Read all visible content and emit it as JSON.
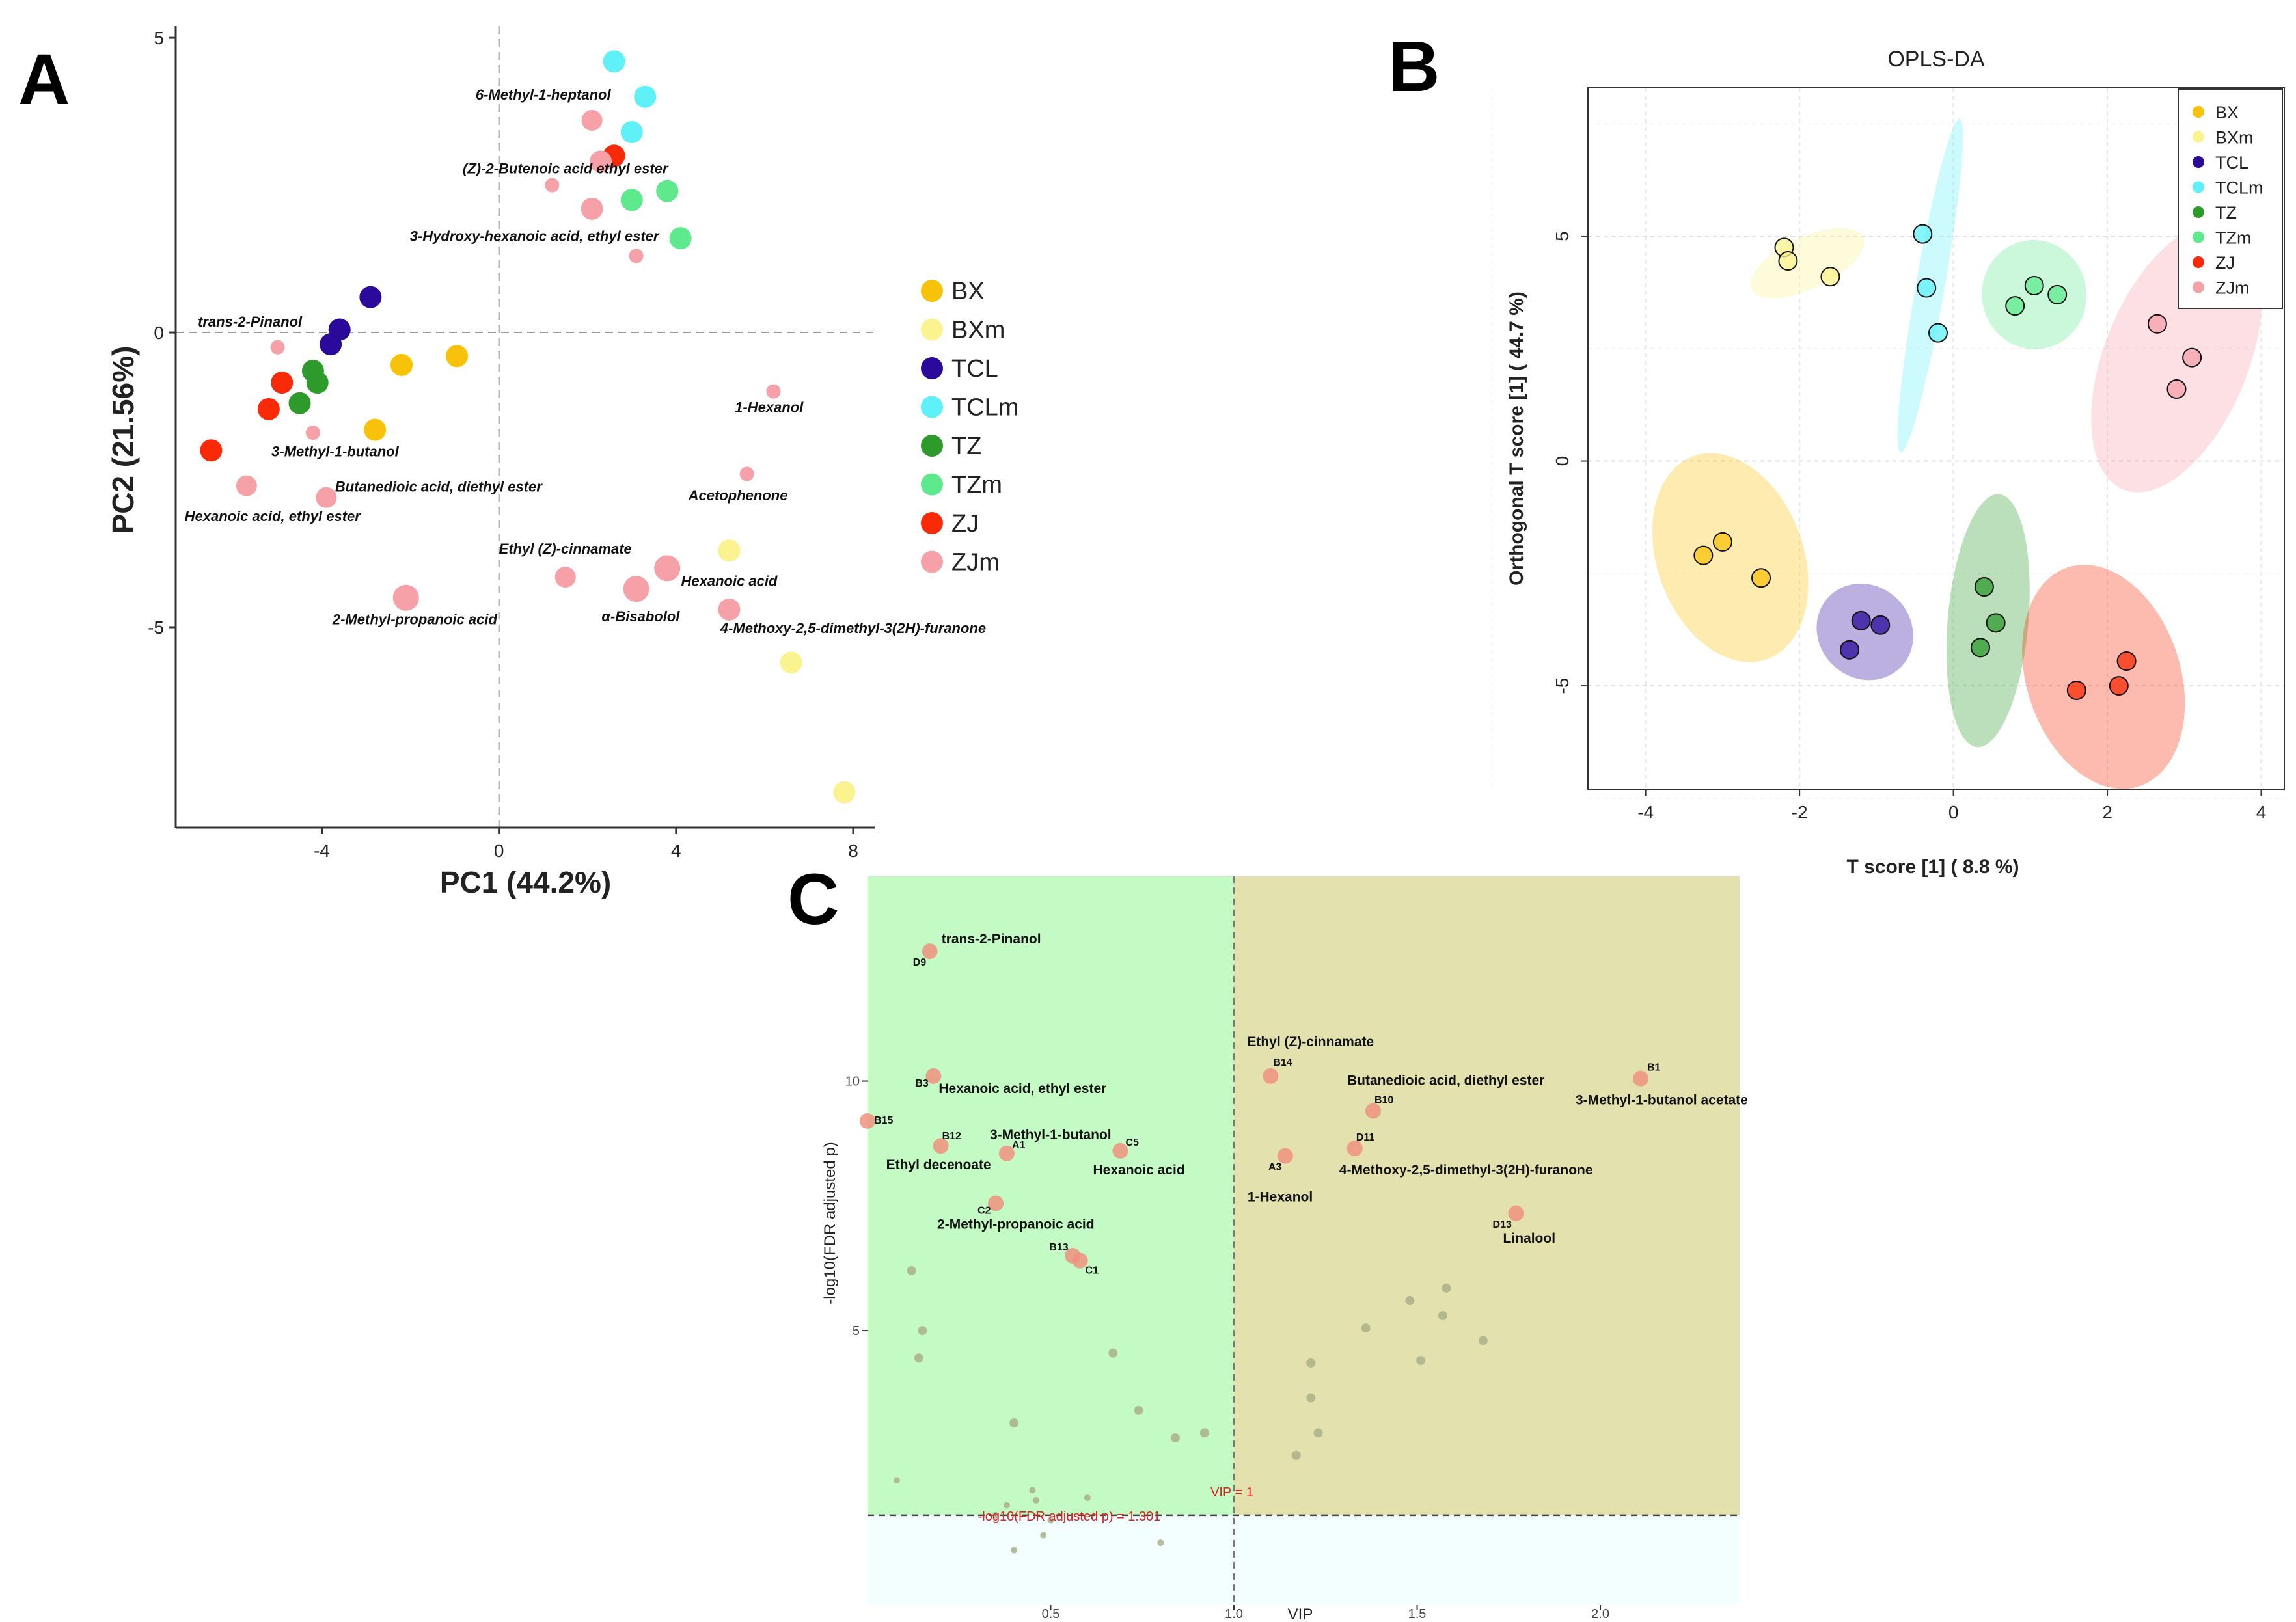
{
  "panel_letters": {
    "a": "A",
    "b": "B",
    "c": "C"
  },
  "colors": {
    "BX": "#f9c20a",
    "BXm": "#fbf38f",
    "TCL": "#2b0a9b",
    "TCLm": "#5ff0f8",
    "TZ": "#2e9a2c",
    "TZm": "#5de98c",
    "ZJ": "#f82a07",
    "ZJm": "#f6a0a8",
    "c_green_region": "#c4fbc4",
    "c_olive_region": "#e3e1ad",
    "c_bottom_region": "#f2feff",
    "c_sig_point": "#f09080",
    "c_point": "#aab088"
  },
  "chart_data": [
    {
      "panel": "A",
      "type": "scatter",
      "title": "",
      "xlabel": "PC1 (44.2%)",
      "ylabel": "PC2 (21.56%)",
      "xlim": [
        -7.3,
        8.5
      ],
      "ylim": [
        -8.4,
        5.2
      ],
      "xticks": [
        -4,
        0,
        4,
        8
      ],
      "yticks": [
        -5,
        0,
        5
      ],
      "legend": [
        "BX",
        "BXm",
        "TCL",
        "TCLm",
        "TZ",
        "TZm",
        "ZJ",
        "ZJm"
      ],
      "legend_position": "right",
      "points": [
        {
          "g": "TCLm",
          "x": 2.6,
          "y": 4.6,
          "s": "large"
        },
        {
          "g": "TCLm",
          "x": 3.3,
          "y": 4.0,
          "s": "large"
        },
        {
          "g": "TCLm",
          "x": 3.0,
          "y": 3.4,
          "s": "large"
        },
        {
          "g": "ZJm",
          "x": 2.1,
          "y": 3.6,
          "s": "medium"
        },
        {
          "g": "ZJ",
          "x": 2.6,
          "y": 3.0,
          "s": "large"
        },
        {
          "g": "ZJm",
          "x": 2.3,
          "y": 2.9,
          "s": "large"
        },
        {
          "g": "ZJm",
          "x": 1.2,
          "y": 2.5,
          "s": "small"
        },
        {
          "g": "TZm",
          "x": 3.8,
          "y": 2.4,
          "s": "large"
        },
        {
          "g": "TZm",
          "x": 3.0,
          "y": 2.25,
          "s": "large"
        },
        {
          "g": "ZJm",
          "x": 2.1,
          "y": 2.1,
          "s": "large"
        },
        {
          "g": "TZm",
          "x": 4.1,
          "y": 1.6,
          "s": "large"
        },
        {
          "g": "ZJm",
          "x": 3.1,
          "y": 1.3,
          "s": "small"
        },
        {
          "g": "TCL",
          "x": -2.9,
          "y": 0.6,
          "s": "large"
        },
        {
          "g": "TCL",
          "x": -3.6,
          "y": 0.05,
          "s": "large"
        },
        {
          "g": "TCL",
          "x": -3.8,
          "y": -0.2,
          "s": "large"
        },
        {
          "g": "ZJm",
          "x": -5.0,
          "y": -0.25,
          "s": "small"
        },
        {
          "g": "BX",
          "x": -2.2,
          "y": -0.55,
          "s": "large"
        },
        {
          "g": "BX",
          "x": -0.95,
          "y": -0.4,
          "s": "large"
        },
        {
          "g": "TZ",
          "x": -4.2,
          "y": -0.65,
          "s": "large"
        },
        {
          "g": "TZ",
          "x": -4.1,
          "y": -0.85,
          "s": "large"
        },
        {
          "g": "ZJ",
          "x": -4.9,
          "y": -0.85,
          "s": "large"
        },
        {
          "g": "TZ",
          "x": -4.5,
          "y": -1.2,
          "s": "large"
        },
        {
          "g": "ZJ",
          "x": -5.2,
          "y": -1.3,
          "s": "large"
        },
        {
          "g": "ZJm",
          "x": 6.2,
          "y": -1.0,
          "s": "small"
        },
        {
          "g": "BX",
          "x": -2.8,
          "y": -1.65,
          "s": "large"
        },
        {
          "g": "ZJm",
          "x": -4.2,
          "y": -1.7,
          "s": "small"
        },
        {
          "g": "ZJ",
          "x": -6.5,
          "y": -2.0,
          "s": "large"
        },
        {
          "g": "ZJm",
          "x": -5.7,
          "y": -2.6,
          "s": "medium"
        },
        {
          "g": "ZJm",
          "x": -3.9,
          "y": -2.8,
          "s": "medium"
        },
        {
          "g": "ZJm",
          "x": 5.6,
          "y": -2.4,
          "s": "small"
        },
        {
          "g": "BXm",
          "x": 5.2,
          "y": -3.7,
          "s": "large"
        },
        {
          "g": "ZJm",
          "x": 3.8,
          "y": -4.0,
          "s": "xlarge"
        },
        {
          "g": "ZJm",
          "x": 1.5,
          "y": -4.15,
          "s": "medium"
        },
        {
          "g": "ZJm",
          "x": 3.1,
          "y": -4.35,
          "s": "xlarge"
        },
        {
          "g": "ZJm",
          "x": -2.1,
          "y": -4.5,
          "s": "xlarge"
        },
        {
          "g": "ZJm",
          "x": 5.2,
          "y": -4.7,
          "s": "large"
        },
        {
          "g": "BXm",
          "x": 6.6,
          "y": -5.6,
          "s": "large"
        },
        {
          "g": "BXm",
          "x": 7.8,
          "y": -7.8,
          "s": "large"
        }
      ],
      "annotations": [
        {
          "text": "6-Methyl-1-heptanol",
          "x": 1.0,
          "y": 3.95,
          "anchor": "middle"
        },
        {
          "text": "(Z)-2-Butenoic acid ethyl ester",
          "x": 1.5,
          "y": 2.7,
          "anchor": "middle"
        },
        {
          "text": "3-Hydroxy-hexanoic acid, ethyl ester",
          "x": 0.8,
          "y": 1.55,
          "anchor": "middle"
        },
        {
          "text": "trans-2-Pinanol",
          "x": -6.8,
          "y": 0.1,
          "anchor": "start"
        },
        {
          "text": "1-Hexanol",
          "x": 6.1,
          "y": -1.35,
          "anchor": "middle"
        },
        {
          "text": "3-Methyl-1-butanol",
          "x": -3.7,
          "y": -2.1,
          "anchor": "middle"
        },
        {
          "text": "Butanedioic acid, diethyl ester",
          "x": -3.7,
          "y": -2.7,
          "anchor": "start"
        },
        {
          "text": "Hexanoic acid, ethyl ester",
          "x": -7.1,
          "y": -3.2,
          "anchor": "start"
        },
        {
          "text": "Acetophenone",
          "x": 5.4,
          "y": -2.85,
          "anchor": "middle"
        },
        {
          "text": "Ethyl (Z)-cinnamate",
          "x": 1.5,
          "y": -3.75,
          "anchor": "middle"
        },
        {
          "text": "Hexanoic acid",
          "x": 5.2,
          "y": -4.3,
          "anchor": "middle"
        },
        {
          "text": "α-Bisabolol",
          "x": 3.2,
          "y": -4.9,
          "anchor": "middle"
        },
        {
          "text": "4-Methoxy-2,5-dimethyl-3(2H)-furanone",
          "x": 8.0,
          "y": -5.1,
          "anchor": "middle"
        },
        {
          "text": "2-Methyl-propanoic acid",
          "x": -1.9,
          "y": -4.95,
          "anchor": "middle"
        }
      ]
    },
    {
      "panel": "B",
      "type": "scatter",
      "title": "OPLS-DA",
      "xlabel": "T score [1] ( 8.8 %)",
      "ylabel": "Orthogonal T score [1] ( 44.7 %)",
      "xlim": [
        -4.75,
        4.3
      ],
      "ylim": [
        -7.3,
        8.3
      ],
      "xticks": [
        -4,
        -2,
        0,
        2,
        4
      ],
      "yticks": [
        -5,
        0,
        5
      ],
      "legend": [
        "BX",
        "BXm",
        "TCL",
        "TCLm",
        "TZ",
        "TZm",
        "ZJ",
        "ZJm"
      ],
      "legend_position": "top-right",
      "grid": true,
      "points": [
        {
          "g": "BXm",
          "x": -2.2,
          "y": 4.75
        },
        {
          "g": "BXm",
          "x": -2.15,
          "y": 4.45
        },
        {
          "g": "BXm",
          "x": -1.6,
          "y": 4.1
        },
        {
          "g": "TCLm",
          "x": -0.4,
          "y": 5.05
        },
        {
          "g": "TCLm",
          "x": -0.35,
          "y": 3.85
        },
        {
          "g": "TCLm",
          "x": -0.2,
          "y": 2.85
        },
        {
          "g": "TZm",
          "x": 0.8,
          "y": 3.45
        },
        {
          "g": "TZm",
          "x": 1.05,
          "y": 3.9
        },
        {
          "g": "TZm",
          "x": 1.35,
          "y": 3.7
        },
        {
          "g": "ZJm",
          "x": 2.65,
          "y": 3.05
        },
        {
          "g": "ZJm",
          "x": 3.1,
          "y": 2.3
        },
        {
          "g": "ZJm",
          "x": 2.9,
          "y": 1.6
        },
        {
          "g": "BX",
          "x": -3.25,
          "y": -2.1
        },
        {
          "g": "BX",
          "x": -3.0,
          "y": -1.8
        },
        {
          "g": "BX",
          "x": -2.5,
          "y": -2.6
        },
        {
          "g": "TCL",
          "x": -1.2,
          "y": -3.55
        },
        {
          "g": "TCL",
          "x": -0.95,
          "y": -3.65
        },
        {
          "g": "TCL",
          "x": -1.35,
          "y": -4.2
        },
        {
          "g": "TZ",
          "x": 0.4,
          "y": -2.8
        },
        {
          "g": "TZ",
          "x": 0.55,
          "y": -3.6
        },
        {
          "g": "TZ",
          "x": 0.35,
          "y": -4.15
        },
        {
          "g": "ZJ",
          "x": 1.6,
          "y": -5.1
        },
        {
          "g": "ZJ",
          "x": 2.15,
          "y": -5.0
        },
        {
          "g": "ZJ",
          "x": 2.25,
          "y": -4.45
        }
      ],
      "ellipses": [
        {
          "g": "BXm",
          "cx": -1.9,
          "cy": 4.4,
          "rx": 0.8,
          "ry": 0.18,
          "angle": -25
        },
        {
          "g": "TCLm",
          "cx": -0.3,
          "cy": 3.9,
          "rx": 2.2,
          "ry": 0.1,
          "angle": -80
        },
        {
          "g": "TZm",
          "cx": 1.05,
          "cy": 3.7,
          "rx": 0.68,
          "ry": 0.38,
          "angle": -10
        },
        {
          "g": "ZJm",
          "cx": 2.9,
          "cy": 2.3,
          "rx": 1.85,
          "ry": 0.5,
          "angle": -68
        },
        {
          "g": "BX",
          "cx": -2.9,
          "cy": -2.15,
          "rx": 0.95,
          "ry": 0.75,
          "angle": -20
        },
        {
          "g": "TCL",
          "cx": -1.15,
          "cy": -3.8,
          "rx": 0.6,
          "ry": 0.35,
          "angle": -45
        },
        {
          "g": "TZ",
          "cx": 0.45,
          "cy": -3.55,
          "rx": 1.65,
          "ry": 0.28,
          "angle": -85
        },
        {
          "g": "ZJ",
          "cx": 1.95,
          "cy": -4.8,
          "rx": 1.0,
          "ry": 0.8,
          "angle": -18
        }
      ]
    },
    {
      "panel": "C",
      "type": "scatter",
      "xlabel": "VIP",
      "ylabel": "-log10(FDR adjusted p)",
      "xlim": [
        0,
        2.38
      ],
      "ylim": [
        -0.5,
        14.1
      ],
      "xticks": [
        0.5,
        1.0,
        1.5,
        2.0
      ],
      "xtick_labels": [
        "0.5",
        "1.0",
        "1.5",
        "2.0"
      ],
      "yticks": [
        5,
        10
      ],
      "vip_line_label": "VIP = 1",
      "p_line_label": "-log10(FDR adjusted p) = 1.301",
      "vip_threshold": 1.0,
      "p_threshold": 1.301,
      "sig_points": [
        {
          "x": 0.17,
          "y": 12.6,
          "id": "D9",
          "label": "trans-2-Pinanol"
        },
        {
          "x": 0.18,
          "y": 10.1,
          "id": "B3",
          "label": "Hexanoic acid, ethyl ester"
        },
        {
          "x": 0.0,
          "y": 9.2,
          "id": "B15",
          "label": ""
        },
        {
          "x": 0.2,
          "y": 8.7,
          "id": "B12",
          "label": "Ethyl decenoate"
        },
        {
          "x": 0.38,
          "y": 8.55,
          "id": "A1",
          "label": "3-Methyl-1-butanol"
        },
        {
          "x": 0.69,
          "y": 8.6,
          "id": "C5",
          "label": "Hexanoic acid"
        },
        {
          "x": 0.35,
          "y": 7.55,
          "id": "C2",
          "label": "2-Methyl-propanoic acid"
        },
        {
          "x": 0.56,
          "y": 6.5,
          "id": "B13",
          "label": ""
        },
        {
          "x": 0.58,
          "y": 6.4,
          "id": "C1",
          "label": ""
        },
        {
          "x": 1.1,
          "y": 10.1,
          "id": "B14",
          "label": "Ethyl (Z)-cinnamate"
        },
        {
          "x": 1.38,
          "y": 9.4,
          "id": "B10",
          "label": "Butanedioic acid, diethyl ester"
        },
        {
          "x": 2.11,
          "y": 10.05,
          "id": "B1",
          "label": "3-Methyl-1-butanol acetate"
        },
        {
          "x": 1.14,
          "y": 8.5,
          "id": "A3",
          "label": "1-Hexanol"
        },
        {
          "x": 1.33,
          "y": 8.65,
          "id": "D11",
          "label": "4-Methoxy-2,5-dimethyl-3(2H)-furanone"
        },
        {
          "x": 1.77,
          "y": 7.35,
          "id": "D13",
          "label": "Linalool"
        }
      ],
      "other_points": [
        [
          0.12,
          6.2
        ],
        [
          0.15,
          5.0
        ],
        [
          0.14,
          4.45
        ],
        [
          0.67,
          4.55
        ],
        [
          0.4,
          3.15
        ],
        [
          0.74,
          3.4
        ],
        [
          0.84,
          2.85
        ],
        [
          0.92,
          2.95
        ],
        [
          0.08,
          2.0
        ],
        [
          0.45,
          1.8
        ],
        [
          0.46,
          1.6
        ],
        [
          0.6,
          1.65
        ],
        [
          0.5,
          1.2
        ],
        [
          0.48,
          0.9
        ],
        [
          0.4,
          0.6
        ],
        [
          0.8,
          0.75
        ],
        [
          1.48,
          5.6
        ],
        [
          1.58,
          5.85
        ],
        [
          1.57,
          5.3
        ],
        [
          1.36,
          5.05
        ],
        [
          1.68,
          4.8
        ],
        [
          1.21,
          4.35
        ],
        [
          1.51,
          4.4
        ],
        [
          1.21,
          3.65
        ],
        [
          1.23,
          2.95
        ],
        [
          1.17,
          2.5
        ],
        [
          0.38,
          1.5
        ],
        [
          0.35,
          1.3
        ]
      ]
    }
  ]
}
